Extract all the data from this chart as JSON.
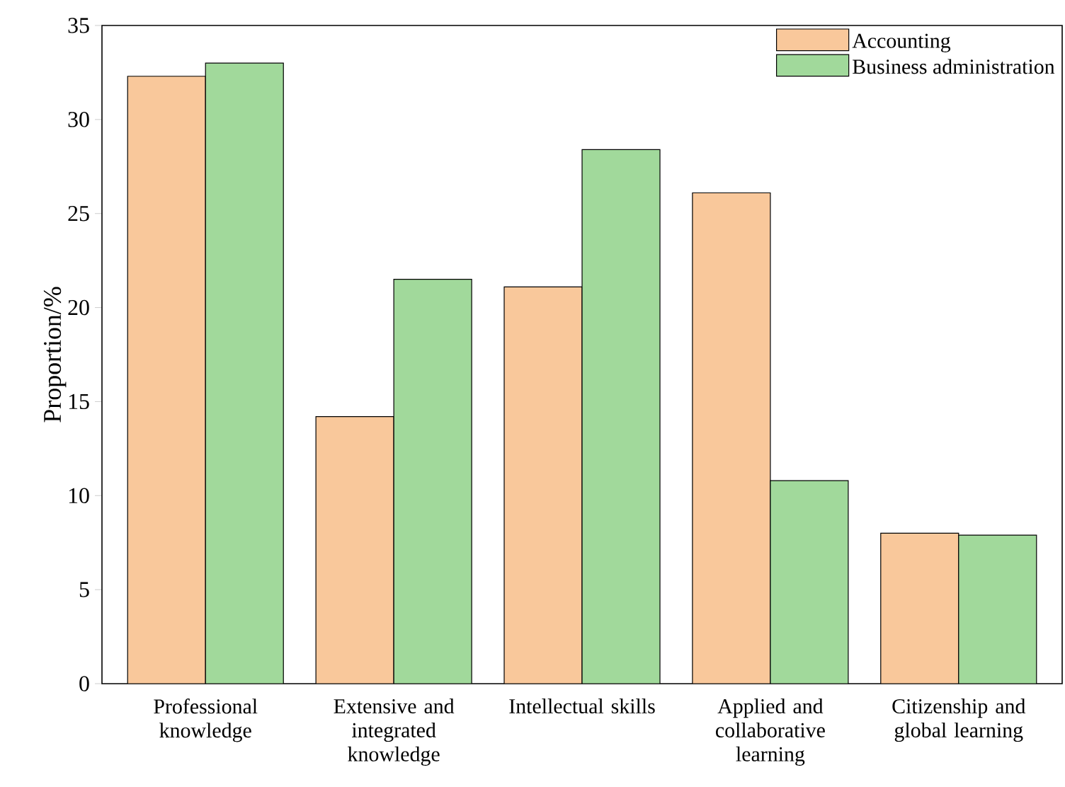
{
  "chart_data": {
    "type": "bar",
    "ylabel": "Proportion/%",
    "categories": [
      "Professional knowledge",
      "Extensive and integrated knowledge",
      "Intellectual skills",
      "Applied and collaborative learning",
      "Citizenship and global learning"
    ],
    "series": [
      {
        "name": "Accounting",
        "color": "#f9c89b",
        "values": [
          32.3,
          14.2,
          21.1,
          26.1,
          8.0
        ]
      },
      {
        "name": "Business administration",
        "color": "#a1d99b",
        "values": [
          33.0,
          21.5,
          28.4,
          10.8,
          7.9
        ]
      }
    ],
    "ylim": [
      0,
      35
    ],
    "yticks": [
      0,
      5,
      10,
      15,
      20,
      25,
      30,
      35
    ],
    "legend": "top right",
    "grid": false
  }
}
